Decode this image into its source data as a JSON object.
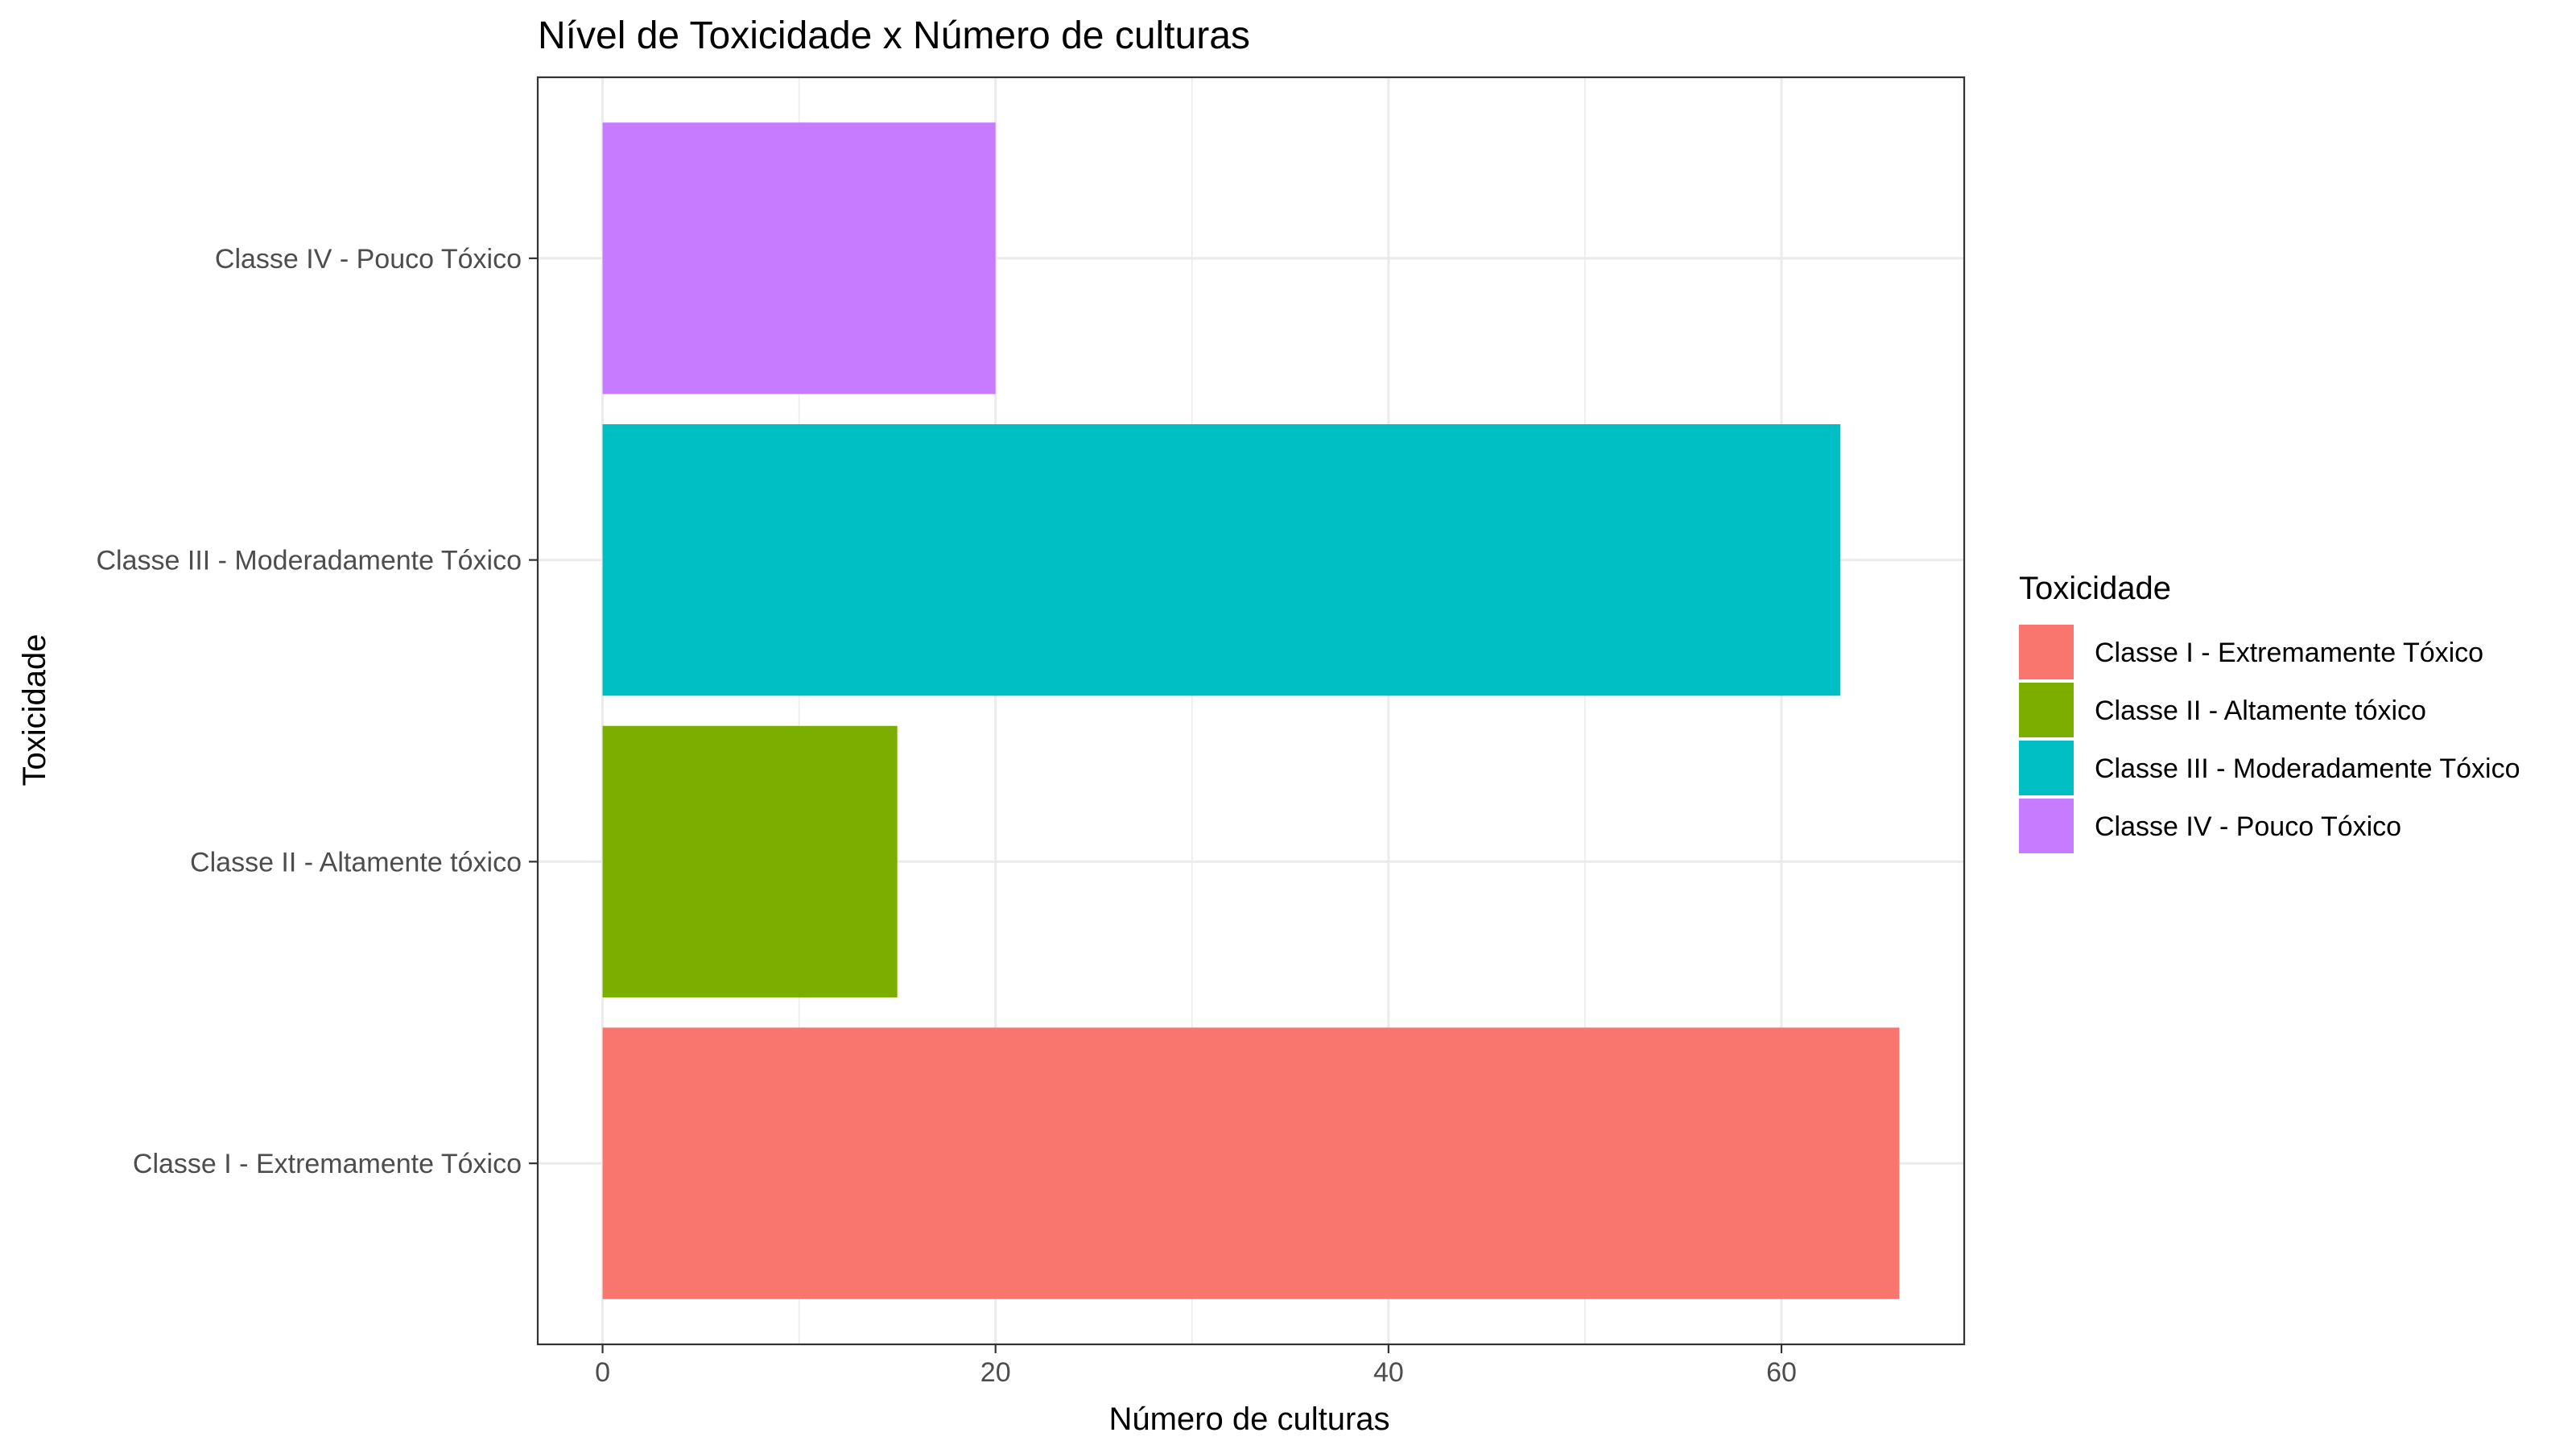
{
  "chart_data": {
    "type": "bar",
    "orientation": "horizontal",
    "title": "Nível de Toxicidade x Número de culturas",
    "xlabel": "Número de culturas",
    "ylabel": "Toxicidade",
    "categories": [
      "Classe I - Extremamente Tóxico",
      "Classe II - Altamente tóxico",
      "Classe III - Moderadamente Tóxico",
      "Classe IV - Pouco Tóxico"
    ],
    "values": [
      66,
      15,
      63,
      20
    ],
    "colors": [
      "#F8766D",
      "#7CAE00",
      "#00BFC4",
      "#C77CFF"
    ],
    "xlim": [
      -3.3,
      69.3
    ],
    "xticks": [
      0,
      20,
      40,
      60
    ],
    "xtick_labels": [
      "0",
      "20",
      "40",
      "60"
    ],
    "grid": true,
    "legend": {
      "title": "Toxicidade",
      "position": "right",
      "entries": [
        "Classe I - Extremamente Tóxico",
        "Classe II - Altamente tóxico",
        "Classe III - Moderadamente Tóxico",
        "Classe IV - Pouco Tóxico"
      ]
    }
  }
}
